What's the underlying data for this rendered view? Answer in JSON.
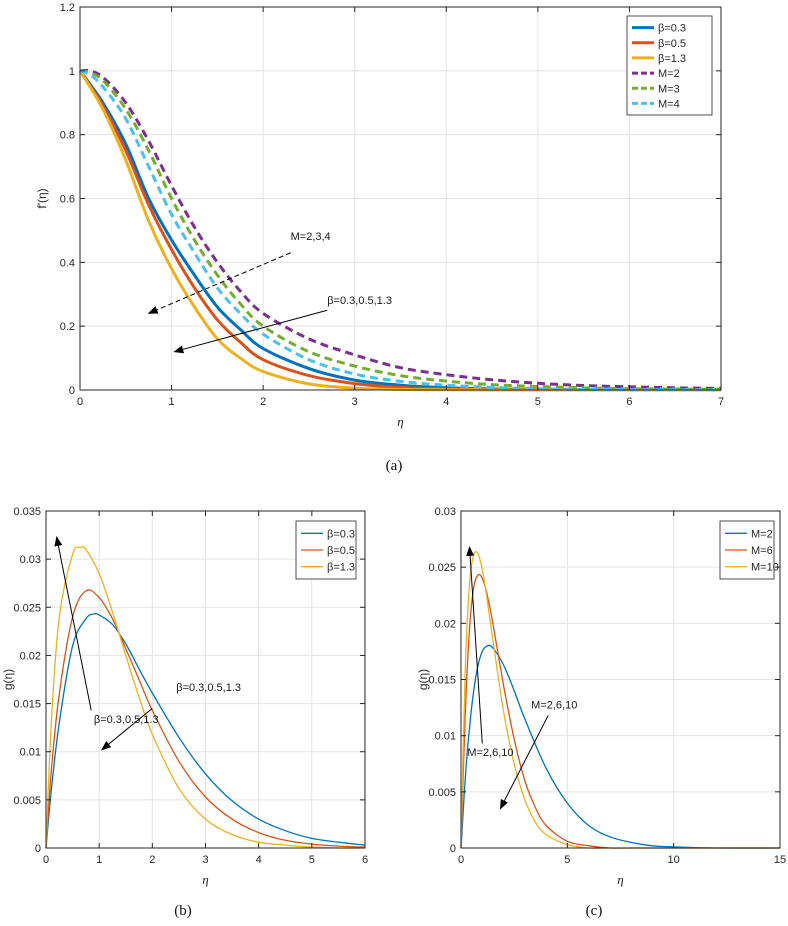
{
  "chart_data": [
    {
      "id": "a",
      "type": "line",
      "caption": "(a)",
      "xlabel": "η",
      "ylabel": "f'(η)",
      "xlim": [
        0,
        7
      ],
      "ylim": [
        0,
        1.2
      ],
      "xticks": [
        0,
        1,
        2,
        3,
        4,
        5,
        6,
        7
      ],
      "yticks": [
        0,
        0.2,
        0.4,
        0.6,
        0.8,
        1,
        1.2
      ],
      "grid": true,
      "legend_position": "top-right",
      "series": [
        {
          "name": "β=0.3",
          "color": "#0072BD",
          "dash": "solid",
          "x": [
            0,
            0.25,
            0.5,
            0.75,
            1,
            1.25,
            1.5,
            1.75,
            2,
            2.5,
            3,
            3.5,
            4,
            4.5,
            5,
            5.5,
            6,
            6.5,
            7
          ],
          "y": [
            1,
            0.9,
            0.77,
            0.6,
            0.47,
            0.36,
            0.26,
            0.19,
            0.13,
            0.067,
            0.031,
            0.015,
            0.007,
            0.003,
            0.0015,
            0.0007,
            0.0003,
            0.0001,
            0
          ]
        },
        {
          "name": "β=0.5",
          "color": "#D95319",
          "dash": "solid",
          "x": [
            0,
            0.25,
            0.5,
            0.75,
            1,
            1.25,
            1.5,
            1.75,
            2,
            2.5,
            3,
            3.5,
            4,
            4.5,
            5,
            5.5,
            6,
            6.5,
            7
          ],
          "y": [
            1,
            0.89,
            0.75,
            0.58,
            0.44,
            0.32,
            0.22,
            0.15,
            0.095,
            0.045,
            0.02,
            0.008,
            0.003,
            0.001,
            0.0004,
            0.0001,
            0,
            0,
            0
          ]
        },
        {
          "name": "β=1.3",
          "color": "#EDB120",
          "dash": "solid",
          "x": [
            0,
            0.25,
            0.5,
            0.75,
            1,
            1.25,
            1.5,
            1.75,
            2,
            2.5,
            3,
            3.5,
            4,
            4.5,
            5,
            5.5,
            6,
            6.5,
            7
          ],
          "y": [
            1,
            0.88,
            0.72,
            0.53,
            0.38,
            0.26,
            0.16,
            0.1,
            0.058,
            0.019,
            0.006,
            0.002,
            0.0005,
            0.0001,
            0,
            0,
            0,
            0,
            0
          ]
        },
        {
          "name": "M=2",
          "color": "#7E2F8E",
          "dash": "dashed",
          "x": [
            0,
            0.1,
            0.25,
            0.5,
            0.75,
            1,
            1.25,
            1.5,
            1.75,
            2,
            2.5,
            3,
            3.5,
            4,
            4.5,
            5,
            5.5,
            6,
            6.5,
            7
          ],
          "y": [
            1,
            1,
            0.98,
            0.9,
            0.78,
            0.64,
            0.51,
            0.4,
            0.31,
            0.24,
            0.16,
            0.11,
            0.07,
            0.048,
            0.032,
            0.021,
            0.014,
            0.01,
            0.007,
            0.005
          ]
        },
        {
          "name": "M=3",
          "color": "#77AC30",
          "dash": "dashed",
          "x": [
            0,
            0.1,
            0.25,
            0.5,
            0.75,
            1,
            1.25,
            1.5,
            1.75,
            2,
            2.5,
            3,
            3.5,
            4,
            4.5,
            5,
            5.5,
            6,
            6.5,
            7
          ],
          "y": [
            1,
            0.995,
            0.97,
            0.88,
            0.75,
            0.6,
            0.47,
            0.36,
            0.27,
            0.2,
            0.12,
            0.075,
            0.045,
            0.028,
            0.017,
            0.011,
            0.007,
            0.004,
            0.003,
            0.002
          ]
        },
        {
          "name": "M=4",
          "color": "#4DBEEE",
          "dash": "dashed",
          "x": [
            0,
            0.1,
            0.25,
            0.5,
            0.75,
            1,
            1.25,
            1.5,
            1.75,
            2,
            2.5,
            3,
            3.5,
            4,
            4.5,
            5,
            5.5,
            6,
            6.5,
            7
          ],
          "y": [
            1,
            0.99,
            0.95,
            0.85,
            0.7,
            0.55,
            0.43,
            0.32,
            0.24,
            0.175,
            0.095,
            0.05,
            0.027,
            0.015,
            0.008,
            0.004,
            0.002,
            0.001,
            0.0005,
            0
          ]
        }
      ],
      "annotations": [
        {
          "text": "M=2,3,4",
          "arrow_from": [
            2.3,
            0.43
          ],
          "arrow_to": [
            0.75,
            0.24
          ],
          "dashed": true,
          "text_at": [
            2.3,
            0.47
          ]
        },
        {
          "text": "β=0.3,0.5,1.3",
          "arrow_from": [
            2.7,
            0.25
          ],
          "arrow_to": [
            1.03,
            0.12
          ],
          "dashed": false,
          "text_at": [
            2.7,
            0.27
          ]
        }
      ]
    },
    {
      "id": "b",
      "type": "line",
      "caption": "(b)",
      "xlabel": "η",
      "ylabel": "g(η)",
      "xlim": [
        0,
        6
      ],
      "ylim": [
        0,
        0.035
      ],
      "xticks": [
        0,
        1,
        2,
        3,
        4,
        5,
        6
      ],
      "yticks": [
        0,
        0.005,
        0.01,
        0.015,
        0.02,
        0.025,
        0.03,
        0.035
      ],
      "grid": true,
      "legend_position": "top-right",
      "series": [
        {
          "name": "β=0.3",
          "color": "#0072BD",
          "dash": "solid",
          "x": [
            0,
            0.1,
            0.25,
            0.5,
            0.75,
            0.9,
            1,
            1.25,
            1.5,
            1.75,
            2,
            2.5,
            3,
            3.5,
            4,
            4.5,
            5,
            5.5,
            6
          ],
          "y": [
            0,
            0.006,
            0.013,
            0.021,
            0.0238,
            0.0243,
            0.0242,
            0.0232,
            0.0212,
            0.0186,
            0.0161,
            0.0115,
            0.0077,
            0.0049,
            0.003,
            0.0018,
            0.001,
            0.0006,
            0.0003
          ]
        },
        {
          "name": "β=0.5",
          "color": "#D95319",
          "dash": "solid",
          "x": [
            0,
            0.1,
            0.25,
            0.5,
            0.75,
            1,
            1.25,
            1.5,
            1.75,
            2,
            2.5,
            3,
            3.5,
            4,
            4.5,
            5,
            5.5,
            6
          ],
          "y": [
            0,
            0.008,
            0.016,
            0.024,
            0.0267,
            0.026,
            0.0238,
            0.0207,
            0.0175,
            0.0143,
            0.009,
            0.0053,
            0.003,
            0.0016,
            0.0008,
            0.0004,
            0.0002,
            0.0001
          ]
        },
        {
          "name": "β=1.3",
          "color": "#EDB120",
          "dash": "solid",
          "x": [
            0,
            0.1,
            0.25,
            0.5,
            0.65,
            0.75,
            1,
            1.25,
            1.5,
            1.75,
            2,
            2.5,
            3,
            3.5,
            4,
            4.5,
            5,
            5.5,
            6
          ],
          "y": [
            0,
            0.013,
            0.024,
            0.0305,
            0.0312,
            0.031,
            0.0285,
            0.0245,
            0.02,
            0.0157,
            0.0118,
            0.0062,
            0.003,
            0.0014,
            0.0006,
            0.0003,
            0.0001,
            0,
            0
          ]
        }
      ],
      "annotations": [
        {
          "text": "β=0.3,0.5,1.3",
          "arrow_from": [
            0.85,
            0.0143
          ],
          "arrow_to": [
            0.2,
            0.0323
          ],
          "dashed": false,
          "text_at": [
            0.9,
            0.013
          ]
        },
        {
          "text": "β=0.3,0.5,1.3",
          "arrow_from": [
            2.0,
            0.0145
          ],
          "arrow_to": [
            1.05,
            0.0102
          ],
          "dashed": false,
          "text_at": [
            2.45,
            0.0163
          ]
        }
      ]
    },
    {
      "id": "c",
      "type": "line",
      "caption": "(c)",
      "xlabel": "η",
      "ylabel": "g(η)",
      "xlim": [
        0,
        15
      ],
      "ylim": [
        0,
        0.03
      ],
      "xticks": [
        0,
        5,
        10,
        15
      ],
      "yticks": [
        0,
        0.005,
        0.01,
        0.015,
        0.02,
        0.025,
        0.03
      ],
      "grid": true,
      "legend_position": "top-right",
      "series": [
        {
          "name": "M=2",
          "color": "#0072BD",
          "dash": "solid",
          "x": [
            0,
            0.25,
            0.5,
            0.75,
            1,
            1.25,
            1.5,
            2,
            2.5,
            3,
            4,
            5,
            6,
            7,
            8,
            9,
            10,
            12,
            15
          ],
          "y": [
            0,
            0.0075,
            0.0125,
            0.0158,
            0.0175,
            0.018,
            0.0178,
            0.0163,
            0.014,
            0.0115,
            0.0071,
            0.004,
            0.002,
            0.001,
            0.0005,
            0.0002,
            0.0001,
            0,
            0
          ]
        },
        {
          "name": "M=6",
          "color": "#D95319",
          "dash": "solid",
          "x": [
            0,
            0.2,
            0.4,
            0.6,
            0.8,
            1,
            1.2,
            1.5,
            2,
            2.5,
            3,
            3.5,
            4,
            5,
            6,
            7,
            8,
            10,
            15
          ],
          "y": [
            0,
            0.012,
            0.0195,
            0.0232,
            0.0243,
            0.024,
            0.0228,
            0.02,
            0.0145,
            0.0097,
            0.006,
            0.0036,
            0.002,
            0.0006,
            0.0002,
            0,
            0,
            0,
            0
          ]
        },
        {
          "name": "M=10",
          "color": "#EDB120",
          "dash": "solid",
          "x": [
            0,
            0.2,
            0.4,
            0.6,
            0.8,
            1,
            1.2,
            1.5,
            2,
            2.5,
            3,
            3.5,
            4,
            5,
            6,
            7,
            8,
            10,
            15
          ],
          "y": [
            0,
            0.016,
            0.0235,
            0.0261,
            0.0262,
            0.0248,
            0.0225,
            0.0185,
            0.0122,
            0.0075,
            0.0043,
            0.0023,
            0.0012,
            0.0003,
            0,
            0,
            0,
            0,
            0
          ]
        }
      ],
      "annotations": [
        {
          "text": "M=2,6,10",
          "arrow_from": [
            1.0,
            0.0093
          ],
          "arrow_to": [
            0.4,
            0.0268
          ],
          "dashed": false,
          "text_at": [
            0.3,
            0.0082
          ]
        },
        {
          "text": "M=2,6,10",
          "arrow_from": [
            4.1,
            0.0118
          ],
          "arrow_to": [
            1.85,
            0.0035
          ],
          "dashed": false,
          "text_at": [
            3.3,
            0.0124
          ]
        }
      ]
    }
  ]
}
